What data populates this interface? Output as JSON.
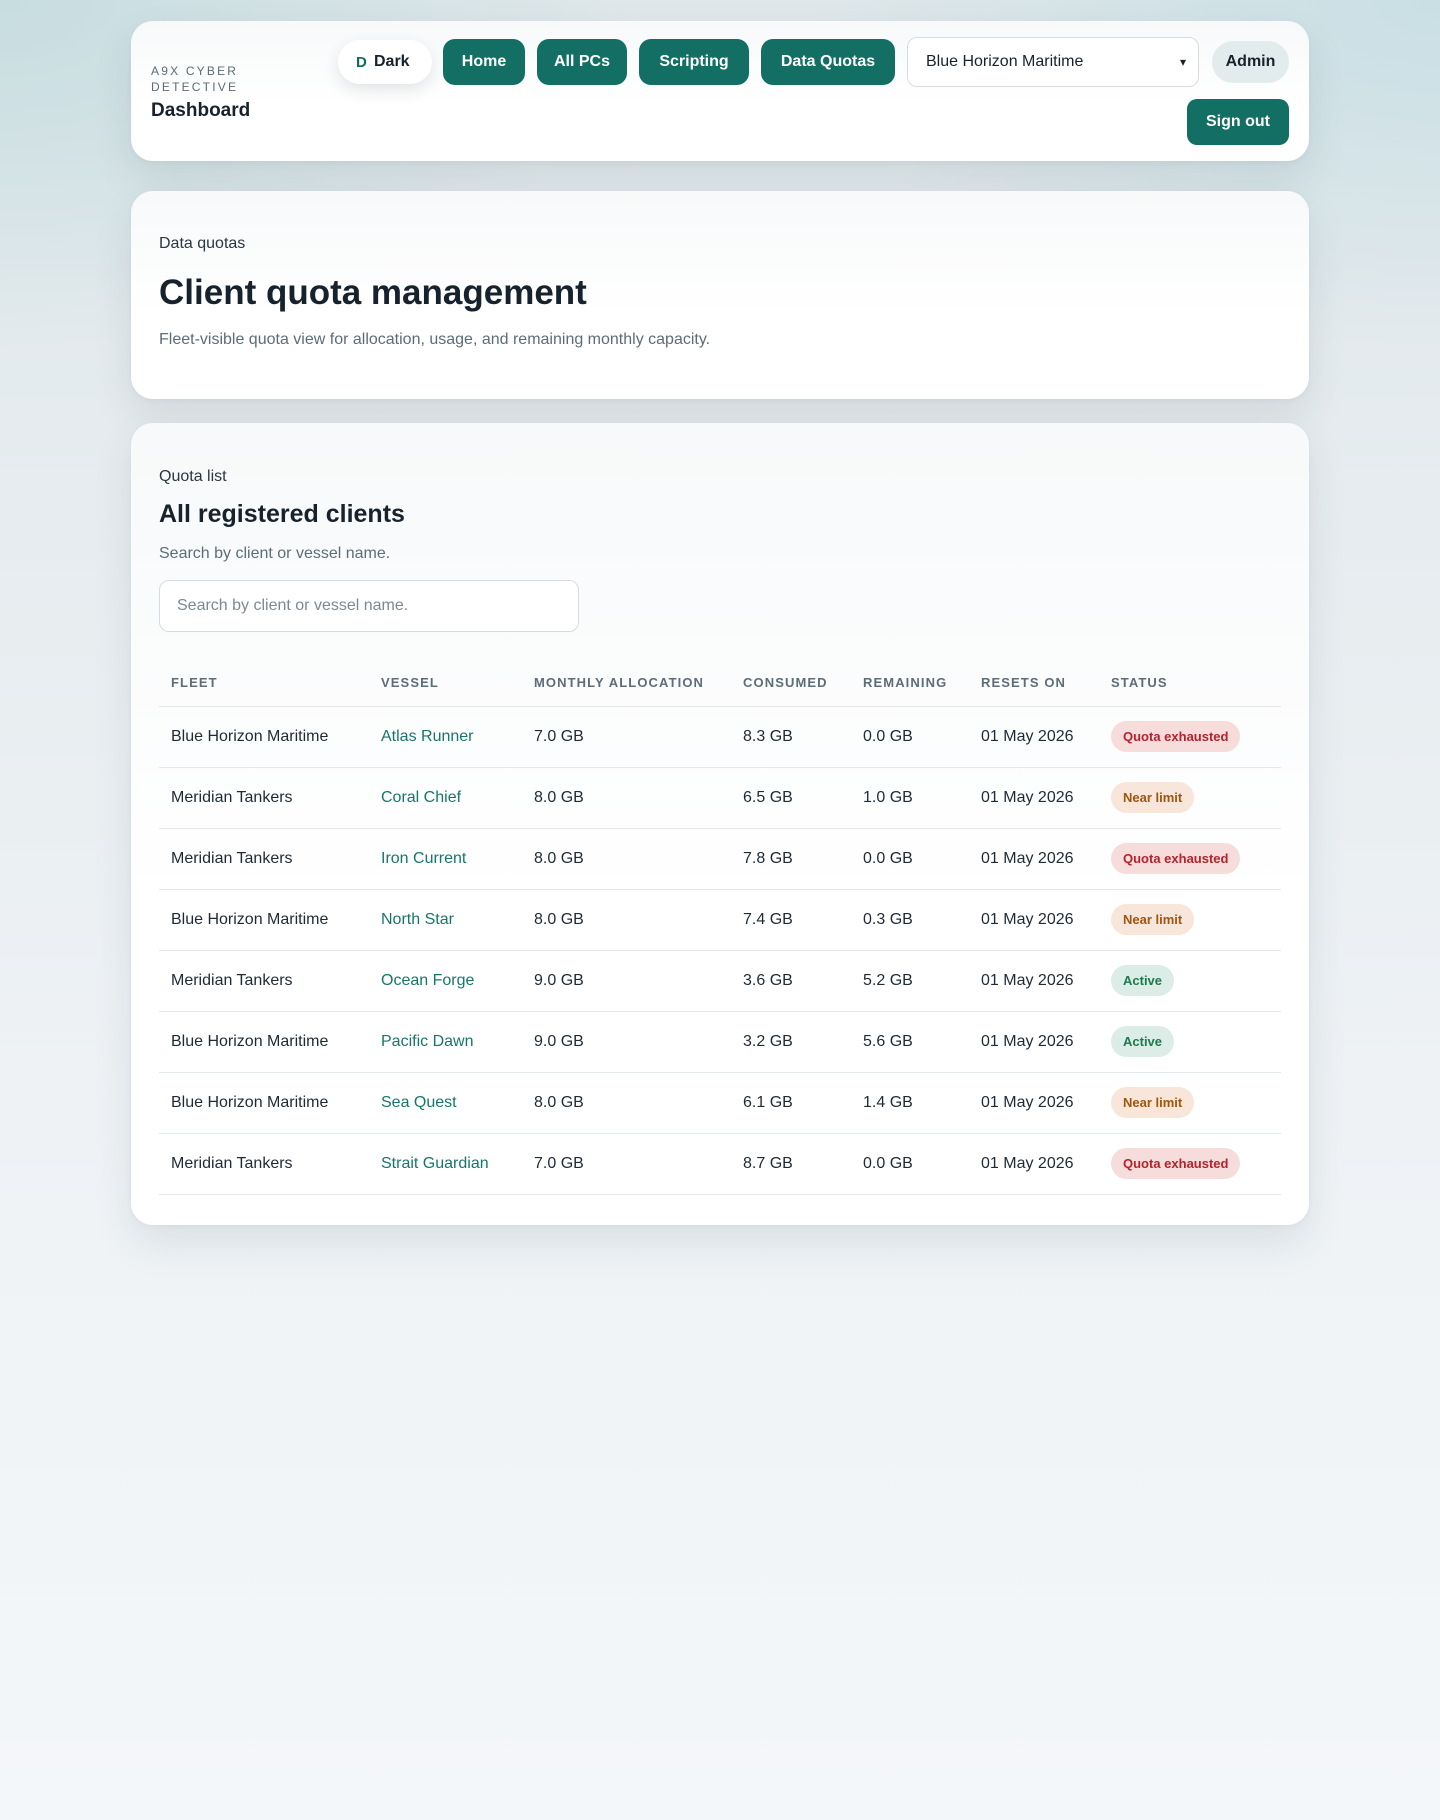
{
  "brand": {
    "kicker": "A9X CYBER DETECTIVE",
    "title": "Dashboard"
  },
  "theme_toggle": {
    "glyph": "D",
    "label": "Dark"
  },
  "nav": [
    "Home",
    "All PCs",
    "Scripting",
    "Data Quotas"
  ],
  "client_select": {
    "value": "Blue Horizon Maritime",
    "icon": "chevron-down-icon"
  },
  "user": {
    "role": "Admin"
  },
  "sign_out": "Sign out",
  "intro": {
    "eyebrow": "Data quotas",
    "title": "Client quota management",
    "description": "Fleet-visible quota view for allocation, usage, and remaining monthly capacity."
  },
  "quota_list": {
    "eyebrow": "Quota list",
    "title": "All registered clients",
    "hint": "Search by client or vessel name.",
    "search_placeholder": "Search by client or vessel name.",
    "columns": [
      "Fleet",
      "Vessel",
      "Monthly allocation",
      "Consumed",
      "Remaining",
      "Resets on",
      "Status"
    ],
    "rows": [
      {
        "fleet": "Blue Horizon Maritime",
        "vessel": "Atlas Runner",
        "allocation": "7.0 GB",
        "consumed": "8.3 GB",
        "remaining": "0.0 GB",
        "resets": "01 May 2026",
        "status": "Quota exhausted"
      },
      {
        "fleet": "Meridian Tankers",
        "vessel": "Coral Chief",
        "allocation": "8.0 GB",
        "consumed": "6.5 GB",
        "remaining": "1.0 GB",
        "resets": "01 May 2026",
        "status": "Near limit"
      },
      {
        "fleet": "Meridian Tankers",
        "vessel": "Iron Current",
        "allocation": "8.0 GB",
        "consumed": "7.8 GB",
        "remaining": "0.0 GB",
        "resets": "01 May 2026",
        "status": "Quota exhausted"
      },
      {
        "fleet": "Blue Horizon Maritime",
        "vessel": "North Star",
        "allocation": "8.0 GB",
        "consumed": "7.4 GB",
        "remaining": "0.3 GB",
        "resets": "01 May 2026",
        "status": "Near limit"
      },
      {
        "fleet": "Meridian Tankers",
        "vessel": "Ocean Forge",
        "allocation": "9.0 GB",
        "consumed": "3.6 GB",
        "remaining": "5.2 GB",
        "resets": "01 May 2026",
        "status": "Active"
      },
      {
        "fleet": "Blue Horizon Maritime",
        "vessel": "Pacific Dawn",
        "allocation": "9.0 GB",
        "consumed": "3.2 GB",
        "remaining": "5.6 GB",
        "resets": "01 May 2026",
        "status": "Active"
      },
      {
        "fleet": "Blue Horizon Maritime",
        "vessel": "Sea Quest",
        "allocation": "8.0 GB",
        "consumed": "6.1 GB",
        "remaining": "1.4 GB",
        "resets": "01 May 2026",
        "status": "Near limit"
      },
      {
        "fleet": "Meridian Tankers",
        "vessel": "Strait Guardian",
        "allocation": "7.0 GB",
        "consumed": "8.7 GB",
        "remaining": "0.0 GB",
        "resets": "01 May 2026",
        "status": "Quota exhausted"
      }
    ]
  },
  "colors": {
    "accent": "#136e64",
    "status_exhausted": "#b4232b",
    "status_near": "#a0560e",
    "status_active": "#1d7a4e"
  }
}
